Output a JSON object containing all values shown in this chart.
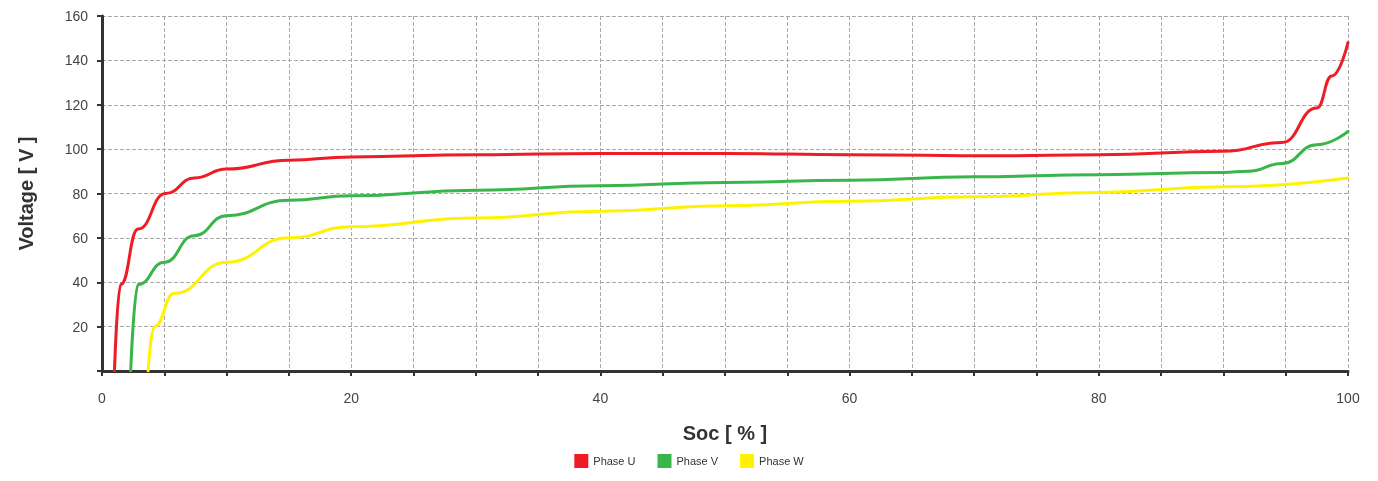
{
  "chart_data": {
    "type": "line",
    "xlabel": "Soc [ % ]",
    "ylabel": "Voltage [ V ]",
    "xlim": [
      0,
      100
    ],
    "ylim": [
      0,
      160
    ],
    "xticks": [
      0,
      {
        "value": 5,
        "label": null
      },
      {
        "value": 10,
        "label": null
      },
      {
        "value": 15,
        "label": null
      },
      20,
      {
        "value": 25,
        "label": null
      },
      {
        "value": 30,
        "label": null
      },
      {
        "value": 35,
        "label": null
      },
      40,
      {
        "value": 45,
        "label": null
      },
      {
        "value": 50,
        "label": null
      },
      {
        "value": 55,
        "label": null
      },
      60,
      {
        "value": 65,
        "label": null
      },
      {
        "value": 70,
        "label": null
      },
      {
        "value": 75,
        "label": null
      },
      80,
      {
        "value": 85,
        "label": null
      },
      {
        "value": 90,
        "label": null
      },
      {
        "value": 95,
        "label": null
      },
      100
    ],
    "yticks": [
      {
        "value": 0,
        "label": null
      },
      20,
      40,
      60,
      80,
      100,
      120,
      140,
      160
    ],
    "grid": true,
    "legend": "bottom",
    "marker": "none",
    "line_style": "solid",
    "series": [
      {
        "name": "Phase U",
        "color": "#ee1c25",
        "x": [
          1,
          1.5,
          2.9,
          5.1,
          7.4,
          10,
          15,
          20,
          30,
          40,
          50,
          60,
          72,
          80,
          90,
          94.7,
          97.5,
          98.7,
          100
        ],
        "values": [
          0,
          39,
          64,
          80,
          87,
          91,
          95,
          96.5,
          97.5,
          98,
          98,
          97.5,
          97,
          97.5,
          99,
          103,
          118.5,
          133,
          148
        ]
      },
      {
        "name": "Phase V",
        "color": "#39b54a",
        "x": [
          2.3,
          2.9,
          5,
          7.4,
          10,
          15,
          20,
          30,
          40,
          50,
          60,
          70,
          80,
          90,
          92,
          94.7,
          97.5,
          100
        ],
        "values": [
          0,
          39,
          49,
          61,
          70,
          77,
          79,
          81.5,
          83.5,
          85,
          86,
          87.5,
          88.5,
          89.5,
          90,
          93.5,
          102,
          108
        ]
      },
      {
        "name": "Phase W",
        "color": "#fff200",
        "x": [
          3.7,
          4.2,
          5.8,
          10,
          15,
          20,
          30,
          40,
          50,
          60,
          70,
          80,
          90,
          100
        ],
        "values": [
          0,
          20,
          35,
          49,
          60,
          65,
          69,
          72,
          74.5,
          76.5,
          78.5,
          80.5,
          83,
          87
        ]
      }
    ]
  }
}
